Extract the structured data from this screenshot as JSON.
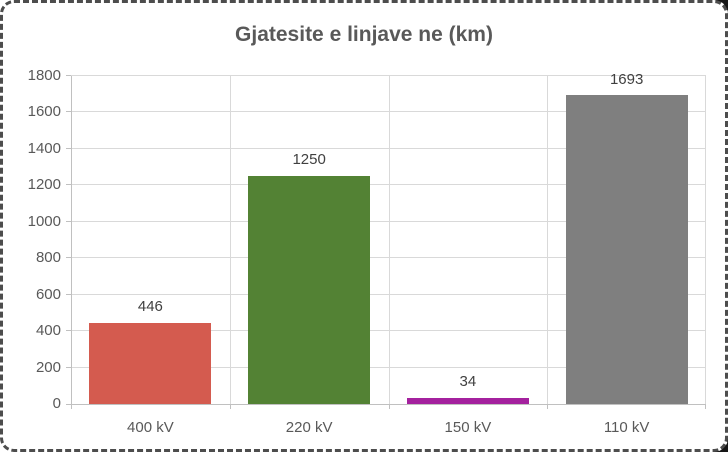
{
  "frame": {
    "border_color": "#4d4d4d",
    "background_color": "#ffffff",
    "corner_shade_color": "#161616"
  },
  "chart_data": {
    "type": "bar",
    "title": "Gjatesite e linjave ne (km)",
    "categories": [
      "400 kV",
      "220 kV",
      "150 kV",
      "110 kV"
    ],
    "values": [
      446,
      1250,
      34,
      1693
    ],
    "data_labels": [
      "446",
      "1250",
      "34",
      "1693"
    ],
    "bar_colors": [
      "#d45b4f",
      "#538234",
      "#a4219e",
      "#7f7f7f"
    ],
    "xlabel": "",
    "ylabel": "",
    "ylim": [
      0,
      1800
    ],
    "ytick_step": 200,
    "ytick_labels": [
      "0",
      "200",
      "400",
      "600",
      "800",
      "1000",
      "1200",
      "1400",
      "1600",
      "1800"
    ],
    "grid": true,
    "vertical_gridlines": true,
    "legend": "none",
    "styles": {
      "title_color": "#595959",
      "tick_label_color": "#595959",
      "data_label_color": "#404040",
      "gridline_color": "#d9d9d9",
      "axis_line_color": "#c0c0c0"
    }
  }
}
